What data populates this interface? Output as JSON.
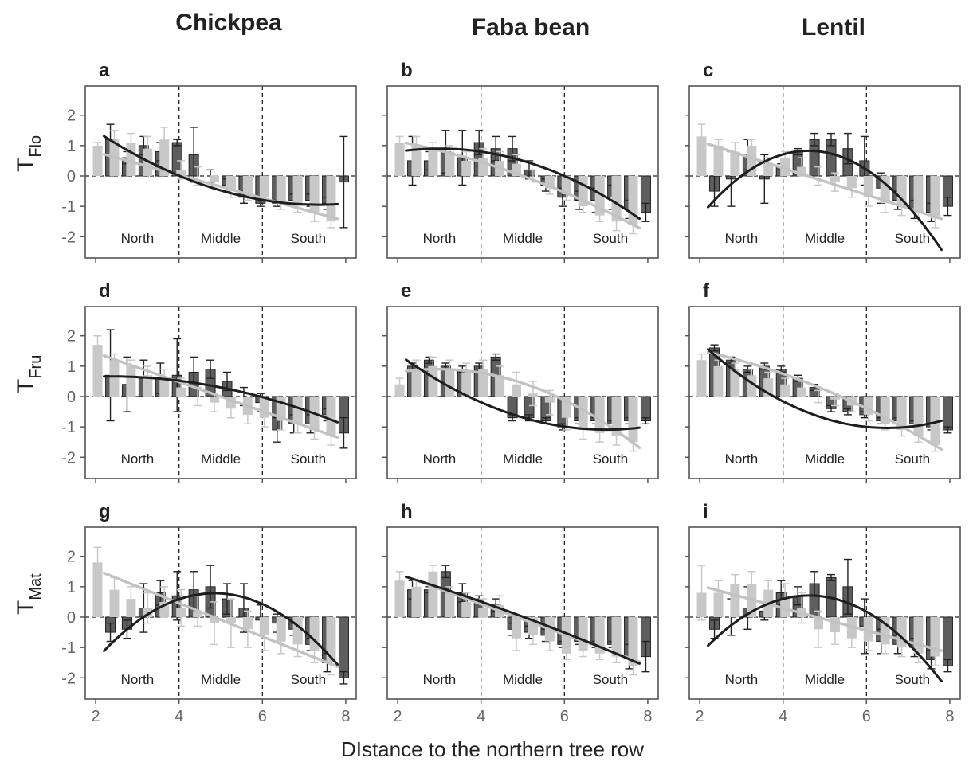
{
  "figure": {
    "xlabel": "DIstance to the northern tree row",
    "columns": [
      "Chickpea",
      "Faba bean",
      "Lentil"
    ],
    "rows": [
      {
        "main": "T",
        "sub": "Flo"
      },
      {
        "main": "T",
        "sub": "Fru"
      },
      {
        "main": "T",
        "sub": "Mat"
      }
    ],
    "regions": [
      "North",
      "Middle",
      "South"
    ],
    "x_ticks": [
      2,
      4,
      6,
      8
    ],
    "y_ticks": [
      2,
      1,
      0,
      -1,
      -2
    ],
    "colors": {
      "light": "#c8c8c8",
      "dark": "#5e5e5e",
      "dark_line": "#1e1e1e",
      "frame": "#555555"
    }
  },
  "chart_data": [
    {
      "type": "bar",
      "panel": "a",
      "row": "TFlo",
      "crop": "Chickpea",
      "xlim": [
        1.75,
        8.25
      ],
      "ylim": [
        -2.7,
        2.7
      ],
      "x_positions": [
        2.2,
        2.6,
        3.0,
        3.4,
        3.8,
        4.2,
        4.6,
        5.0,
        5.4,
        5.8,
        6.2,
        6.6,
        7.0,
        7.4,
        7.8
      ],
      "light_values": [
        1.0,
        1.2,
        1.1,
        0.9,
        1.2,
        0.2,
        0.0,
        -0.2,
        -0.5,
        -0.6,
        -0.7,
        -0.9,
        -1.0,
        -1.2,
        -1.5
      ],
      "light_errors": [
        0.1,
        0.3,
        0.3,
        0.4,
        0.4,
        0.3,
        0.3,
        0.2,
        0.2,
        0.2,
        0.1,
        0.2,
        0.2,
        0.3,
        0.2
      ],
      "dark_values": [
        1.2,
        0.6,
        1.0,
        0.8,
        1.1,
        0.7,
        0.0,
        -0.3,
        -0.7,
        -0.9,
        -0.9,
        -0.8,
        -0.8,
        -0.9,
        -0.2
      ],
      "dark_errors": [
        0.5,
        0.2,
        0.3,
        0.3,
        0.1,
        0.9,
        0.2,
        0.2,
        0.2,
        0.1,
        0.1,
        0.2,
        0.2,
        0.2,
        1.5
      ],
      "light_fit": [
        1.55,
        -0.38,
        0.0
      ],
      "dark_fit": [
        3.65,
        -1.25,
        0.085
      ],
      "fit_range": [
        2.2,
        7.8
      ]
    },
    {
      "type": "bar",
      "panel": "b",
      "row": "TFlo",
      "crop": "Faba bean",
      "xlim": [
        1.75,
        8.25
      ],
      "ylim": [
        -2.7,
        2.7
      ],
      "x_positions": [
        2.2,
        2.6,
        3.0,
        3.4,
        3.8,
        4.2,
        4.6,
        5.0,
        5.4,
        5.8,
        6.2,
        6.6,
        7.0,
        7.4,
        7.8
      ],
      "light_values": [
        1.1,
        1.0,
        0.9,
        0.8,
        0.5,
        0.6,
        0.5,
        0.4,
        0.0,
        -0.4,
        -0.6,
        -1.0,
        -1.3,
        -1.5,
        -1.6
      ],
      "light_errors": [
        0.2,
        0.3,
        0.2,
        0.2,
        0.3,
        0.3,
        0.3,
        0.3,
        0.2,
        0.2,
        0.2,
        0.2,
        0.2,
        0.3,
        0.3
      ],
      "dark_values": [
        0.5,
        0.5,
        0.8,
        0.6,
        1.1,
        0.9,
        0.9,
        0.2,
        -0.3,
        -0.7,
        -0.8,
        -0.8,
        -0.7,
        -1.1,
        -1.2
      ],
      "dark_errors": [
        0.8,
        0.3,
        0.7,
        0.9,
        0.4,
        0.4,
        0.4,
        0.3,
        0.2,
        0.3,
        0.3,
        0.4,
        0.4,
        0.3,
        0.3
      ],
      "light_fit": [
        1.5,
        -0.1,
        -0.04
      ],
      "dark_fit": [
        0.0,
        0.6,
        -0.1
      ],
      "fit_range": [
        2.2,
        7.8
      ]
    },
    {
      "type": "bar",
      "panel": "c",
      "row": "TFlo",
      "crop": "Lentil",
      "xlim": [
        1.75,
        8.25
      ],
      "ylim": [
        -2.7,
        2.7
      ],
      "x_positions": [
        2.2,
        2.6,
        3.0,
        3.4,
        3.8,
        4.2,
        4.6,
        5.0,
        5.4,
        5.8,
        6.2,
        6.6,
        7.0,
        7.4,
        7.8
      ],
      "light_values": [
        1.3,
        1.0,
        0.8,
        1.0,
        0.4,
        0.6,
        0.3,
        0.0,
        -0.2,
        -0.4,
        -0.7,
        -0.9,
        -1.0,
        -1.2,
        -1.4
      ],
      "light_errors": [
        0.4,
        0.2,
        0.3,
        0.2,
        0.2,
        0.2,
        0.3,
        0.3,
        0.3,
        0.3,
        0.3,
        0.3,
        0.3,
        0.3,
        0.3
      ],
      "dark_values": [
        -0.5,
        -0.1,
        0.7,
        -0.1,
        0.3,
        0.8,
        1.2,
        1.2,
        0.9,
        0.5,
        -0.4,
        -0.8,
        -1.1,
        -1.2,
        -1.0
      ],
      "dark_errors": [
        0.5,
        0.9,
        0.5,
        0.8,
        0.1,
        0.1,
        0.2,
        0.2,
        0.5,
        0.8,
        0.5,
        0.3,
        0.3,
        0.3,
        0.3
      ],
      "light_fit": [
        2.02,
        -0.44,
        0.0
      ],
      "dark_fit": [
        -5.97,
        2.95,
        -0.32
      ],
      "fit_range": [
        2.2,
        7.8
      ]
    },
    {
      "type": "bar",
      "panel": "d",
      "row": "TFru",
      "crop": "Chickpea",
      "xlim": [
        1.75,
        8.25
      ],
      "ylim": [
        -2.7,
        2.7
      ],
      "x_positions": [
        2.2,
        2.6,
        3.0,
        3.4,
        3.8,
        4.2,
        4.6,
        5.0,
        5.4,
        5.8,
        6.2,
        6.6,
        7.0,
        7.4,
        7.8
      ],
      "light_values": [
        1.7,
        1.2,
        1.0,
        0.7,
        0.6,
        0.3,
        0.0,
        -0.2,
        -0.4,
        -0.6,
        -0.7,
        -0.8,
        -0.9,
        -1.1,
        -1.3
      ],
      "light_errors": [
        0.3,
        0.2,
        0.2,
        0.3,
        0.3,
        0.3,
        0.3,
        0.3,
        0.3,
        0.3,
        0.3,
        0.3,
        0.3,
        0.3,
        0.3
      ],
      "dark_values": [
        0.7,
        0.4,
        0.6,
        0.6,
        0.7,
        0.8,
        0.9,
        0.5,
        0.0,
        -0.2,
        -1.1,
        -0.9,
        -0.9,
        -0.6,
        -1.2
      ],
      "dark_errors": [
        1.5,
        0.9,
        0.6,
        0.5,
        1.2,
        0.5,
        0.3,
        0.3,
        0.3,
        0.3,
        0.4,
        0.3,
        0.3,
        0.2,
        0.5
      ],
      "light_fit": [
        2.4,
        -0.48,
        0.0
      ],
      "dark_fit": [
        0.4,
        0.23,
        -0.05
      ],
      "fit_range": [
        2.2,
        7.8
      ]
    },
    {
      "type": "bar",
      "panel": "e",
      "row": "TFru",
      "crop": "Faba bean",
      "xlim": [
        1.75,
        8.25
      ],
      "ylim": [
        -2.7,
        2.7
      ],
      "x_positions": [
        2.2,
        2.6,
        3.0,
        3.4,
        3.8,
        4.2,
        4.6,
        5.0,
        5.4,
        5.8,
        6.2,
        6.6,
        7.0,
        7.4,
        7.8
      ],
      "light_values": [
        0.4,
        0.9,
        1.0,
        0.9,
        0.8,
        0.9,
        0.7,
        0.4,
        0.1,
        -0.2,
        -0.7,
        -1.1,
        -1.2,
        -1.3,
        -1.5
      ],
      "light_errors": [
        0.2,
        0.3,
        0.3,
        0.3,
        0.3,
        0.3,
        0.3,
        0.4,
        0.4,
        0.4,
        0.4,
        0.3,
        0.3,
        0.3,
        0.3
      ],
      "dark_values": [
        1.0,
        1.2,
        1.0,
        0.9,
        1.0,
        1.3,
        -0.7,
        -0.7,
        -0.8,
        -1.0,
        -0.8,
        -0.8,
        -0.9,
        -0.8,
        -0.8
      ],
      "dark_errors": [
        0.1,
        0.1,
        0.1,
        0.1,
        0.1,
        0.1,
        0.1,
        0.1,
        0.1,
        0.1,
        0.1,
        0.1,
        0.1,
        0.1,
        0.1
      ],
      "light_fit": [
        -0.06,
        0.65,
        -0.11
      ],
      "dark_fit": [
        3.81,
        -1.4,
        0.1
      ],
      "fit_range": [
        2.2,
        7.8
      ]
    },
    {
      "type": "bar",
      "panel": "f",
      "row": "TFru",
      "crop": "Lentil",
      "xlim": [
        1.75,
        8.25
      ],
      "ylim": [
        -2.7,
        2.7
      ],
      "x_positions": [
        2.2,
        2.6,
        3.0,
        3.4,
        3.8,
        4.2,
        4.6,
        5.0,
        5.4,
        5.8,
        6.2,
        6.6,
        7.0,
        7.4,
        7.8
      ],
      "light_values": [
        1.2,
        1.0,
        0.9,
        0.7,
        0.6,
        0.4,
        0.3,
        0.0,
        -0.1,
        -0.3,
        -0.6,
        -0.9,
        -1.1,
        -1.3,
        -1.6
      ],
      "light_errors": [
        0.2,
        0.2,
        0.2,
        0.2,
        0.2,
        0.2,
        0.2,
        0.2,
        0.2,
        0.2,
        0.2,
        0.2,
        0.2,
        0.2,
        0.2
      ],
      "dark_values": [
        1.6,
        1.2,
        0.9,
        1.0,
        0.9,
        0.6,
        0.3,
        -0.4,
        -0.5,
        -0.6,
        -0.8,
        -0.8,
        -0.9,
        -1.0,
        -1.1
      ],
      "dark_errors": [
        0.1,
        0.1,
        0.1,
        0.1,
        0.1,
        0.1,
        0.1,
        0.1,
        0.1,
        0.1,
        0.1,
        0.1,
        0.1,
        0.1,
        0.1
      ],
      "light_fit": [
        1.9,
        -0.1,
        -0.047
      ],
      "dark_fit": [
        4.88,
        -1.82,
        0.14
      ],
      "fit_range": [
        2.2,
        7.8
      ]
    },
    {
      "type": "bar",
      "panel": "g",
      "row": "TMat",
      "crop": "Chickpea",
      "xlim": [
        1.75,
        8.25
      ],
      "ylim": [
        -2.7,
        2.7
      ],
      "x_positions": [
        2.2,
        2.6,
        3.0,
        3.4,
        3.8,
        4.2,
        4.6,
        5.0,
        5.4,
        5.8,
        6.2,
        6.6,
        7.0,
        7.4,
        7.8
      ],
      "light_values": [
        1.8,
        0.9,
        0.6,
        0.3,
        0.5,
        0.3,
        0.2,
        -0.2,
        -0.2,
        -0.4,
        -0.6,
        -0.8,
        -0.9,
        -1.1,
        -1.5
      ],
      "light_errors": [
        0.5,
        0.4,
        0.4,
        0.5,
        0.5,
        0.6,
        0.5,
        0.7,
        0.8,
        0.6,
        0.5,
        0.4,
        0.4,
        0.4,
        0.4
      ],
      "dark_values": [
        -0.5,
        -0.4,
        0.3,
        0.8,
        0.7,
        0.9,
        1.0,
        0.6,
        0.3,
        -0.1,
        -0.2,
        -0.4,
        -0.9,
        -1.5,
        -2.0
      ],
      "dark_errors": [
        0.3,
        0.3,
        0.8,
        0.4,
        0.8,
        0.6,
        0.7,
        0.5,
        0.8,
        0.5,
        0.3,
        0.2,
        0.2,
        0.3,
        0.2
      ],
      "light_fit": [
        2.66,
        -0.55,
        0.0
      ],
      "dark_fit": [
        -5.57,
        2.62,
        -0.27
      ],
      "fit_range": [
        2.2,
        7.8
      ]
    },
    {
      "type": "bar",
      "panel": "h",
      "row": "TMat",
      "crop": "Faba bean",
      "xlim": [
        1.75,
        8.25
      ],
      "ylim": [
        -2.7,
        2.7
      ],
      "x_positions": [
        2.2,
        2.6,
        3.0,
        3.4,
        3.8,
        4.2,
        4.6,
        5.0,
        5.4,
        5.8,
        6.2,
        6.6,
        7.0,
        7.4,
        7.8
      ],
      "light_values": [
        1.2,
        1.0,
        1.5,
        0.8,
        0.5,
        0.3,
        0.4,
        -0.7,
        -0.6,
        -0.8,
        -1.2,
        -1.1,
        -1.2,
        -1.3,
        -1.6
      ],
      "light_errors": [
        0.3,
        0.2,
        0.2,
        0.2,
        0.3,
        0.3,
        0.3,
        0.4,
        0.3,
        0.3,
        0.2,
        0.2,
        0.2,
        0.2,
        0.3
      ],
      "dark_values": [
        0.9,
        0.9,
        1.5,
        0.8,
        0.6,
        0.4,
        -0.4,
        -0.5,
        -0.6,
        -0.9,
        -0.8,
        -0.9,
        -0.9,
        -1.3,
        -1.3
      ],
      "dark_errors": [
        0.3,
        0.1,
        0.2,
        0.3,
        0.1,
        0.2,
        0.2,
        0.2,
        0.2,
        0.1,
        0.1,
        0.1,
        0.1,
        0.4,
        0.5
      ],
      "light_fit": [
        2.43,
        -0.5,
        0.0
      ],
      "dark_fit": [
        2.19,
        -0.36,
        -0.015
      ],
      "fit_range": [
        2.2,
        7.8
      ]
    },
    {
      "type": "bar",
      "panel": "i",
      "row": "TMat",
      "crop": "Lentil",
      "xlim": [
        1.75,
        8.25
      ],
      "ylim": [
        -2.7,
        2.7
      ],
      "x_positions": [
        2.2,
        2.6,
        3.0,
        3.4,
        3.8,
        4.2,
        4.6,
        5.0,
        5.4,
        5.8,
        6.2,
        6.6,
        7.0,
        7.4,
        7.8
      ],
      "light_values": [
        0.8,
        0.8,
        1.1,
        1.1,
        0.9,
        0.6,
        0.3,
        -0.4,
        -0.5,
        -0.7,
        -0.8,
        -0.9,
        -1.0,
        -1.2,
        -1.3
      ],
      "light_errors": [
        0.9,
        0.4,
        0.3,
        0.4,
        0.3,
        0.5,
        0.5,
        0.6,
        0.4,
        0.3,
        0.3,
        0.3,
        0.3,
        0.3,
        0.3
      ],
      "dark_values": [
        -0.4,
        0.0,
        0.3,
        0.2,
        0.8,
        0.7,
        1.1,
        1.3,
        1.0,
        -0.3,
        -0.8,
        -0.9,
        -1.0,
        -1.4,
        -1.6
      ],
      "dark_errors": [
        0.3,
        0.6,
        0.7,
        0.3,
        0.4,
        0.3,
        0.4,
        0.1,
        0.9,
        0.9,
        0.4,
        0.3,
        0.3,
        0.3,
        0.2
      ],
      "light_fit": [
        1.78,
        -0.37,
        0.0
      ],
      "dark_fit": [
        -5.28,
        2.59,
        -0.28
      ],
      "fit_range": [
        2.2,
        7.8
      ]
    }
  ]
}
